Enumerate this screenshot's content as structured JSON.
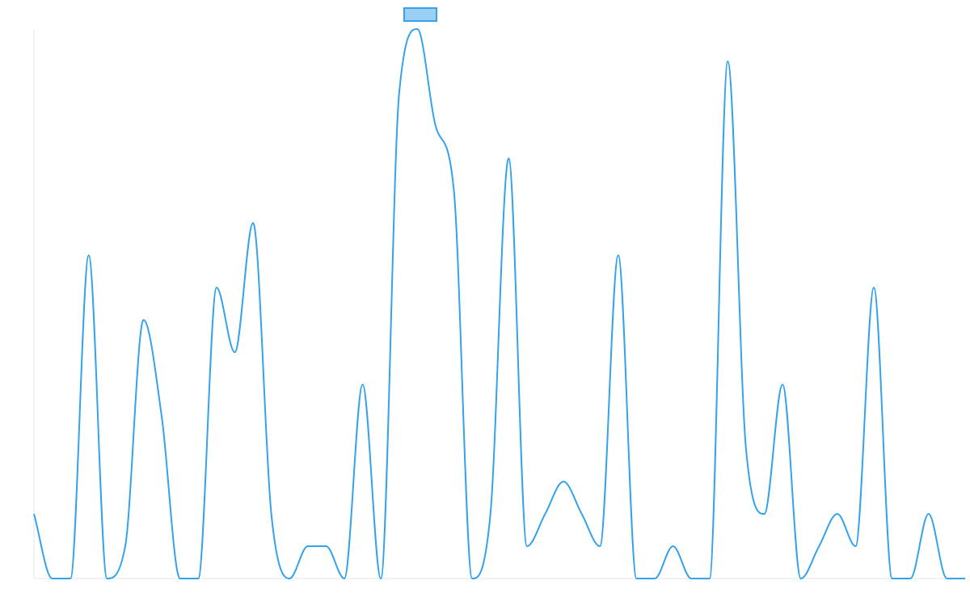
{
  "chart_data": {
    "type": "line",
    "title": "",
    "xlabel": "",
    "ylabel": "",
    "x": [
      0,
      1,
      2,
      3,
      4,
      5,
      6,
      7,
      8,
      9,
      10,
      11,
      12,
      13,
      14,
      15,
      16,
      17,
      18,
      19,
      20,
      21,
      22,
      23,
      24,
      25,
      26,
      27,
      28,
      29,
      30,
      31,
      32,
      33,
      34,
      35,
      36,
      37,
      38,
      39,
      40,
      41,
      42,
      43,
      44,
      45,
      46,
      47,
      48,
      49,
      50,
      51
    ],
    "ylim": [
      0,
      17
    ],
    "grid": false,
    "legend": "top-center",
    "series": [
      {
        "name": "",
        "color": "#36a2eb",
        "fill": "#9ad0f5",
        "values": [
          2,
          0,
          0,
          10,
          0,
          1,
          8,
          5,
          0,
          0,
          9,
          7,
          11,
          2,
          0,
          1,
          1,
          0,
          6,
          0,
          15,
          17,
          14,
          12,
          0,
          2,
          13,
          1,
          2,
          3,
          2,
          1,
          10,
          0,
          0,
          1,
          0,
          0,
          16,
          4,
          2,
          6,
          0,
          1,
          2,
          1,
          9,
          0,
          0,
          2,
          0,
          0
        ]
      }
    ]
  }
}
